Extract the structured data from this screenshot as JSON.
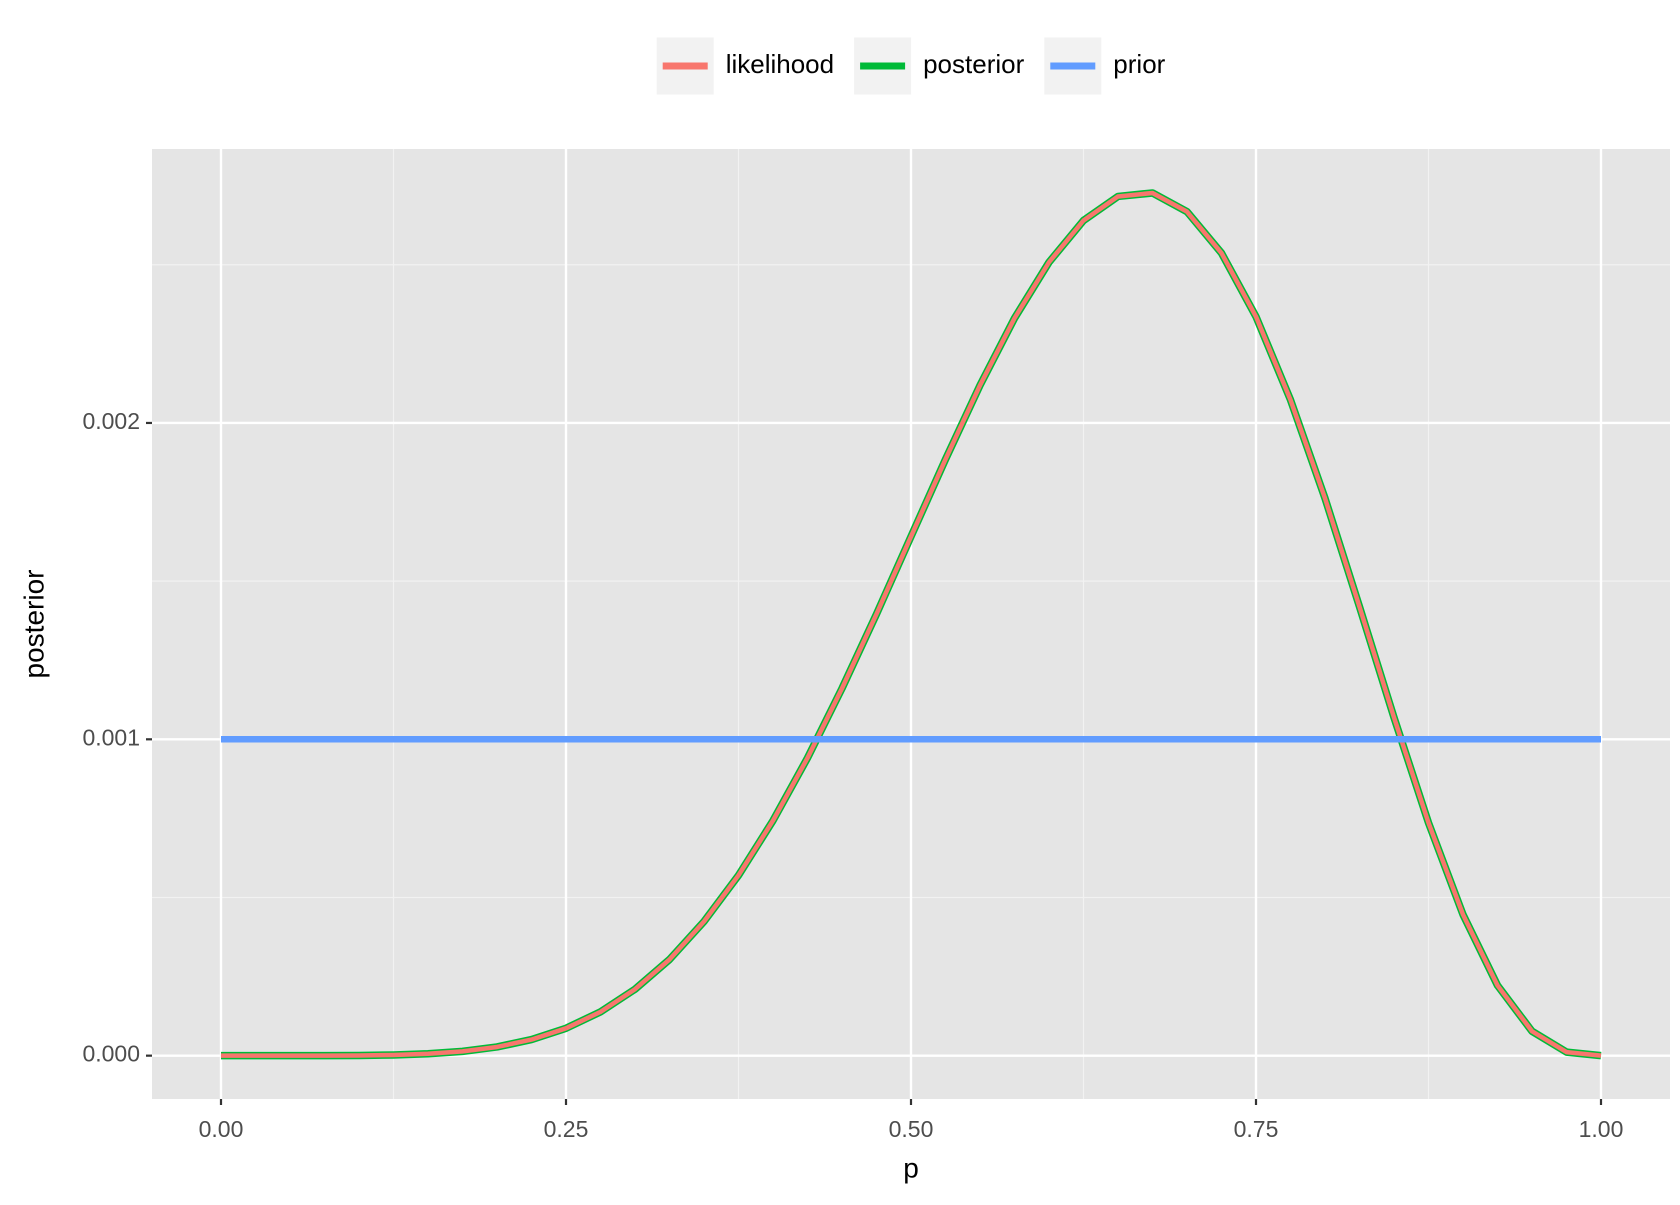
{
  "chart_data": {
    "type": "line",
    "x_label": "p",
    "y_label": "posterior",
    "legend": "top",
    "grid": true,
    "xlim": [
      -0.05,
      1.05
    ],
    "ylim": [
      -0.000137,
      0.002866
    ],
    "xticks": [
      {
        "value": 0,
        "label": "0.00"
      },
      {
        "value": 0.25,
        "label": "0.25"
      },
      {
        "value": 0.5,
        "label": "0.50"
      },
      {
        "value": 0.75,
        "label": "0.75"
      },
      {
        "value": 1,
        "label": "1.00"
      }
    ],
    "yticks": [
      {
        "value": 0,
        "label": "0.000"
      },
      {
        "value": 0.001,
        "label": "0.001"
      },
      {
        "value": 0.002,
        "label": "0.002"
      }
    ],
    "minor_xticks": [
      0.125,
      0.375,
      0.625,
      0.875
    ],
    "minor_yticks": [
      0.0005,
      0.0015,
      0.0025
    ],
    "x": [
      0,
      0.025,
      0.05,
      0.075,
      0.1,
      0.125,
      0.15,
      0.175,
      0.2,
      0.225,
      0.25,
      0.275,
      0.3,
      0.325,
      0.35,
      0.375,
      0.4,
      0.425,
      0.45,
      0.475,
      0.5,
      0.525,
      0.55,
      0.575,
      0.6,
      0.625,
      0.65,
      0.675,
      0.7,
      0.725,
      0.75,
      0.775,
      0.8,
      0.825,
      0.85,
      0.875,
      0.9,
      0.925,
      0.95,
      0.975,
      1
    ],
    "series": [
      {
        "name": "likelihood",
        "color": "#F8766D",
        "values": [
          0,
          0,
          0,
          1e-07,
          6e-07,
          2.1e-06,
          5.9e-06,
          1.35e-05,
          2.75e-05,
          5.08e-05,
          8.65e-05,
          0.0001385,
          0.00021,
          0.000304,
          0.000424,
          0.00057,
          0.000743,
          0.000941,
          0.001161,
          0.001396,
          0.001641,
          0.001885,
          0.002119,
          0.002331,
          0.002508,
          0.00264,
          0.002716,
          0.002727,
          0.002668,
          0.002537,
          0.002336,
          0.002073,
          0.001762,
          0.001419,
          0.001069,
          0.000736,
          0.000446,
          0.000222,
          7.72e-05,
          1.13e-05,
          0
        ]
      },
      {
        "name": "posterior",
        "color": "#00BA38",
        "values": [
          0,
          0,
          0,
          1e-07,
          6e-07,
          2.1e-06,
          5.9e-06,
          1.35e-05,
          2.75e-05,
          5.08e-05,
          8.65e-05,
          0.0001385,
          0.00021,
          0.000304,
          0.000424,
          0.00057,
          0.000743,
          0.000941,
          0.001161,
          0.001396,
          0.001641,
          0.001885,
          0.002119,
          0.002331,
          0.002508,
          0.00264,
          0.002716,
          0.002727,
          0.002668,
          0.002537,
          0.002336,
          0.002073,
          0.001762,
          0.001419,
          0.001069,
          0.000736,
          0.000446,
          0.000222,
          7.72e-05,
          1.13e-05,
          0
        ]
      },
      {
        "name": "prior",
        "color": "#619CFF",
        "values": [
          0.001,
          0.001,
          0.001,
          0.001,
          0.001,
          0.001,
          0.001,
          0.001,
          0.001,
          0.001,
          0.001,
          0.001,
          0.001,
          0.001,
          0.001,
          0.001,
          0.001,
          0.001,
          0.001,
          0.001,
          0.001,
          0.001,
          0.001,
          0.001,
          0.001,
          0.001,
          0.001,
          0.001,
          0.001,
          0.001,
          0.001,
          0.001,
          0.001,
          0.001,
          0.001,
          0.001,
          0.001,
          0.001,
          0.001,
          0.001,
          0.001
        ]
      }
    ]
  }
}
